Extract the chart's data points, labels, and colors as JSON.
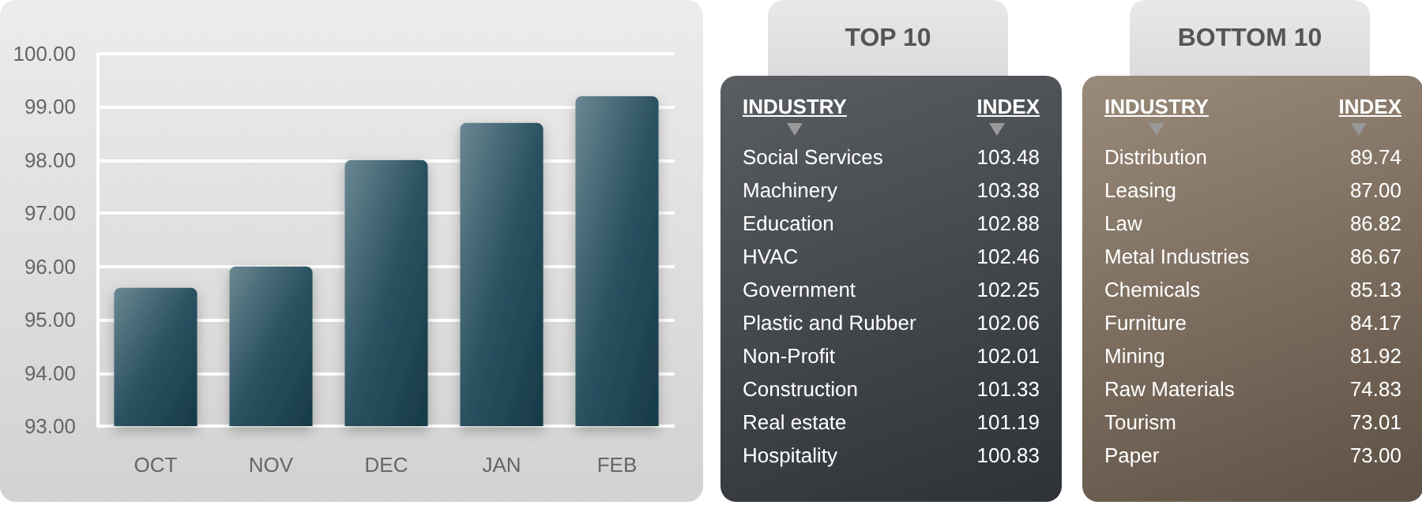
{
  "chart_data": [
    {
      "type": "bar",
      "categories": [
        "OCT",
        "NOV",
        "DEC",
        "JAN",
        "FEB"
      ],
      "values": [
        95.6,
        96.0,
        98.0,
        98.7,
        99.2
      ],
      "color": "#2b5261",
      "ylim": [
        93,
        100
      ],
      "yticks": [
        {
          "value": 93,
          "label": "93.00"
        },
        {
          "value": 94,
          "label": "94.00"
        },
        {
          "value": 95,
          "label": "95.00"
        },
        {
          "value": 96,
          "label": "96.00"
        },
        {
          "value": 97,
          "label": "97.00"
        },
        {
          "value": 98,
          "label": "98.00"
        },
        {
          "value": 99,
          "label": "99.00"
        },
        {
          "value": 100,
          "label": "100.00"
        }
      ],
      "grid": "y"
    },
    {
      "type": "other",
      "title": "TOP 10",
      "xlabel": "INDUSTRY",
      "ylabel": "INDEX",
      "categories": [
        "Social Services",
        "Machinery",
        "Education",
        "HVAC",
        "Government",
        "Plastic and Rubber",
        "Non-Profit",
        "Construction",
        "Real estate",
        "Hospitality"
      ],
      "values": [
        103.48,
        103.38,
        102.88,
        102.46,
        102.25,
        102.06,
        102.01,
        101.33,
        101.19,
        100.83
      ],
      "value_labels": [
        "103.48",
        "103.38",
        "102.88",
        "102.46",
        "102.25",
        "102.06",
        "102.01",
        "101.33",
        "101.19",
        "100.83"
      ]
    },
    {
      "type": "other",
      "title": "BOTTOM 10",
      "xlabel": "INDUSTRY",
      "ylabel": "INDEX",
      "categories": [
        "Distribution",
        "Leasing",
        "Law",
        "Metal Industries",
        "Chemicals",
        "Furniture",
        "Mining",
        "Raw Materials",
        "Tourism",
        "Paper"
      ],
      "values": [
        89.74,
        87.0,
        86.82,
        86.67,
        85.13,
        84.17,
        81.92,
        74.83,
        73.01,
        73.0
      ],
      "value_labels": [
        "89.74",
        "87.00",
        "86.82",
        "86.67",
        "85.13",
        "84.17",
        "81.92",
        "74.83",
        "73.01",
        "73.00"
      ]
    }
  ]
}
